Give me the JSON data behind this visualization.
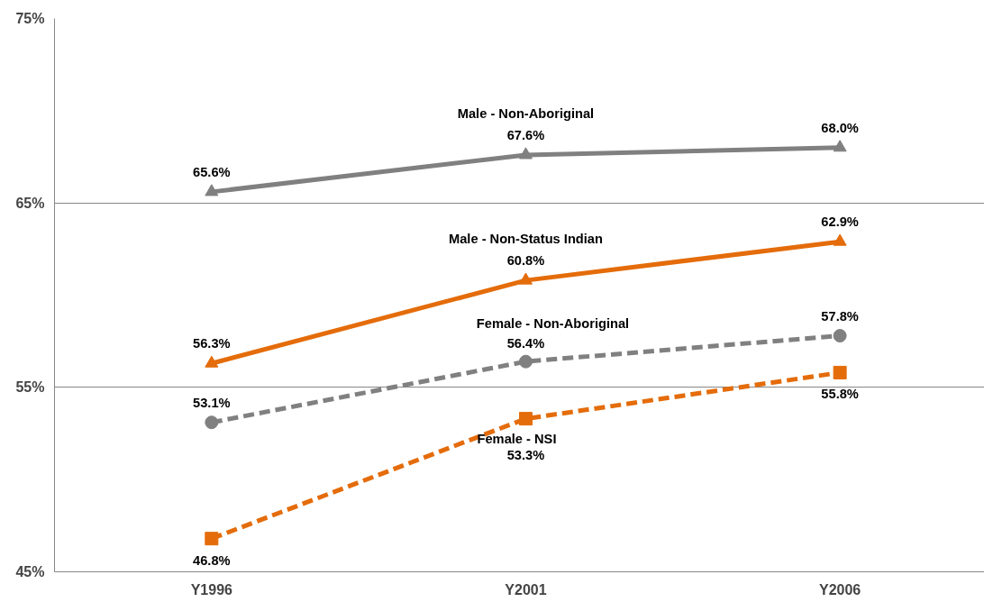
{
  "chart_data": {
    "type": "line",
    "categories": [
      "Y1996",
      "Y2001",
      "Y2006"
    ],
    "ylim": [
      45,
      75
    ],
    "yticks": [
      {
        "value": 45,
        "label": "45%"
      },
      {
        "value": 55,
        "label": "55%"
      },
      {
        "value": 65,
        "label": "65%"
      },
      {
        "value": 75,
        "label": "75%"
      }
    ],
    "grid": "y",
    "series": [
      {
        "name": "Male - Non-Aboriginal",
        "color": "#808080",
        "values": [
          65.6,
          67.6,
          68.0
        ],
        "marker": "triangle",
        "line_style": "solid",
        "value_labels": [
          "65.6%",
          "67.6%",
          "68.0%"
        ]
      },
      {
        "name": "Male - Non-Status Indian",
        "color": "#e46c0a",
        "values": [
          56.3,
          60.8,
          62.9
        ],
        "marker": "triangle",
        "line_style": "solid",
        "value_labels": [
          "56.3%",
          "60.8%",
          "62.9%"
        ]
      },
      {
        "name": "Female - Non-Aboriginal",
        "color": "#808080",
        "values": [
          53.1,
          56.4,
          57.8
        ],
        "marker": "circle",
        "line_style": "dashed",
        "value_labels": [
          "53.1%",
          "56.4%",
          "57.8%"
        ]
      },
      {
        "name": "Female - NSI",
        "color": "#e46c0a",
        "values": [
          46.8,
          53.3,
          55.8
        ],
        "marker": "square",
        "line_style": "dashed",
        "value_labels": [
          "46.8%",
          "53.3%",
          "55.8%"
        ]
      }
    ]
  }
}
